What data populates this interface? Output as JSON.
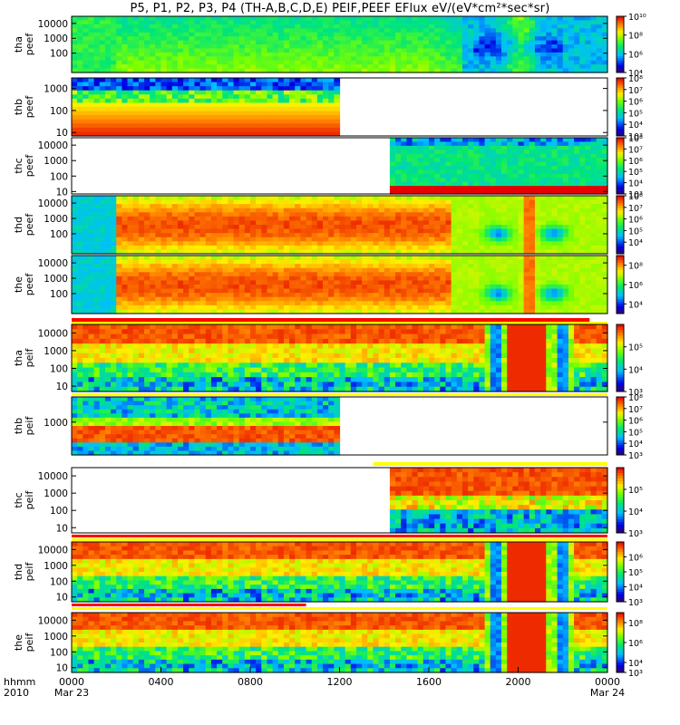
{
  "title": "P5, P1, P2, P3, P4 (TH-A,B,C,D,E) PEIF,PEEF EFlux eV/(eV*cm²*sec*sr)",
  "chart_data": [
    {
      "type": "heatmap",
      "panel": "tha_peef",
      "ylabel": [
        "tha",
        "peef"
      ],
      "ylim": [
        5,
        30000
      ],
      "yscale": "log",
      "yticks": [
        {
          "v": 100,
          "t": "100"
        },
        {
          "v": 1000,
          "t": "1000"
        },
        {
          "v": 10000,
          "t": "10000"
        }
      ],
      "coverage": [
        0,
        24
      ],
      "cbar": {
        "min": 10000.0,
        "max": 10000000000.0,
        "ticks": [
          {
            "v": 10000.0,
            "t": "10⁴"
          },
          {
            "v": 1000000.0,
            "t": "10⁶"
          },
          {
            "v": 100000000.0,
            "t": "10⁸"
          },
          {
            "v": 10000000000.0,
            "t": "10¹⁰"
          }
        ]
      },
      "theme": "electron-tha",
      "flag_bar": "none"
    },
    {
      "type": "heatmap",
      "panel": "thb_peef",
      "ylabel": [
        "thb",
        "peef"
      ],
      "ylim": [
        7,
        3000
      ],
      "yscale": "log",
      "yticks": [
        {
          "v": 10,
          "t": "10"
        },
        {
          "v": 100,
          "t": "100"
        },
        {
          "v": 1000,
          "t": "1000"
        }
      ],
      "coverage": [
        0,
        12
      ],
      "cbar": {
        "min": 1000.0,
        "max": 100000000.0,
        "ticks": [
          {
            "v": 1000.0,
            "t": "10³"
          },
          {
            "v": 10000.0,
            "t": "10⁴"
          },
          {
            "v": 100000.0,
            "t": "10⁵"
          },
          {
            "v": 1000000.0,
            "t": "10⁶"
          },
          {
            "v": 10000000.0,
            "t": "10⁷"
          },
          {
            "v": 100000000.0,
            "t": "10⁸"
          }
        ]
      },
      "theme": "electron-thb",
      "flag_bar": "none"
    },
    {
      "type": "heatmap",
      "panel": "thc_peef",
      "ylabel": [
        "thc",
        "peef"
      ],
      "ylim": [
        7,
        30000
      ],
      "yscale": "log",
      "yticks": [
        {
          "v": 10,
          "t": "10"
        },
        {
          "v": 100,
          "t": "100"
        },
        {
          "v": 1000,
          "t": "1000"
        },
        {
          "v": 10000,
          "t": "10000"
        }
      ],
      "coverage": [
        14.3,
        24
      ],
      "cbar": {
        "min": 1000.0,
        "max": 100000000.0,
        "ticks": [
          {
            "v": 1000.0,
            "t": "10³"
          },
          {
            "v": 10000.0,
            "t": "10⁴"
          },
          {
            "v": 100000.0,
            "t": "10⁵"
          },
          {
            "v": 1000000.0,
            "t": "10⁶"
          },
          {
            "v": 10000000.0,
            "t": "10⁷"
          },
          {
            "v": 100000000.0,
            "t": "10⁸"
          }
        ]
      },
      "theme": "electron-thc",
      "flag_bar": "none"
    },
    {
      "type": "heatmap",
      "panel": "thd_peef",
      "ylabel": [
        "thd",
        "peef"
      ],
      "ylim": [
        5,
        30000
      ],
      "yscale": "log",
      "yticks": [
        {
          "v": 100,
          "t": "100"
        },
        {
          "v": 1000,
          "t": "1000"
        },
        {
          "v": 10000,
          "t": "10000"
        }
      ],
      "coverage": [
        0,
        24
      ],
      "cbar": {
        "min": 1000.0,
        "max": 100000000.0,
        "ticks": [
          {
            "v": 10000.0,
            "t": "10⁴"
          },
          {
            "v": 100000.0,
            "t": "10⁵"
          },
          {
            "v": 1000000.0,
            "t": "10⁶"
          },
          {
            "v": 10000000.0,
            "t": "10⁷"
          },
          {
            "v": 100000000.0,
            "t": "10⁸"
          }
        ]
      },
      "theme": "electron-thd",
      "flag_bar": "none"
    },
    {
      "type": "heatmap",
      "panel": "the_peef",
      "ylabel": [
        "the",
        "peef"
      ],
      "ylim": [
        5,
        30000
      ],
      "yscale": "log",
      "yticks": [
        {
          "v": 100,
          "t": "100"
        },
        {
          "v": 1000,
          "t": "1000"
        },
        {
          "v": 10000,
          "t": "10000"
        }
      ],
      "coverage": [
        0,
        24
      ],
      "cbar": {
        "min": 1000.0,
        "max": 1000000000.0,
        "ticks": [
          {
            "v": 10000.0,
            "t": "10⁴"
          },
          {
            "v": 1000000.0,
            "t": "10⁶"
          },
          {
            "v": 100000000.0,
            "t": "10⁸"
          }
        ]
      },
      "theme": "electron-the",
      "flag_bar": "red-yellow"
    },
    {
      "type": "heatmap",
      "panel": "tha_peif",
      "ylabel": [
        "tha",
        "peif"
      ],
      "ylim": [
        5,
        30000
      ],
      "yscale": "log",
      "yticks": [
        {
          "v": 10,
          "t": "10"
        },
        {
          "v": 100,
          "t": "100"
        },
        {
          "v": 1000,
          "t": "1000"
        },
        {
          "v": 10000,
          "t": "10000"
        }
      ],
      "coverage": [
        0,
        24
      ],
      "cbar": {
        "min": 1000.0,
        "max": 1000000.0,
        "ticks": [
          {
            "v": 1000.0,
            "t": "10³"
          },
          {
            "v": 10000.0,
            "t": "10⁴"
          },
          {
            "v": 100000.0,
            "t": "10⁵"
          }
        ]
      },
      "theme": "ion-full",
      "flag_bar": "yellow"
    },
    {
      "type": "heatmap",
      "panel": "thb_peif",
      "ylabel": [
        "thb",
        "peif"
      ],
      "ylim": [
        50,
        10000
      ],
      "yscale": "log",
      "yticks": [
        {
          "v": 1000,
          "t": "1000"
        }
      ],
      "coverage": [
        0,
        12
      ],
      "cbar": {
        "min": 1000.0,
        "max": 100000000.0,
        "ticks": [
          {
            "v": 1000.0,
            "t": "10³"
          },
          {
            "v": 10000.0,
            "t": "10⁴"
          },
          {
            "v": 100000.0,
            "t": "10⁵"
          },
          {
            "v": 1000000.0,
            "t": "10⁶"
          },
          {
            "v": 10000000.0,
            "t": "10⁷"
          },
          {
            "v": 100000000.0,
            "t": "10⁸"
          }
        ]
      },
      "theme": "ion-thb",
      "flag_bar": "yellow-partial"
    },
    {
      "type": "heatmap",
      "panel": "thc_peif",
      "ylabel": [
        "thc",
        "peif"
      ],
      "ylim": [
        5,
        30000
      ],
      "yscale": "log",
      "yticks": [
        {
          "v": 10,
          "t": "10"
        },
        {
          "v": 100,
          "t": "100"
        },
        {
          "v": 1000,
          "t": "1000"
        },
        {
          "v": 10000,
          "t": "10000"
        }
      ],
      "coverage": [
        14.3,
        24
      ],
      "cbar": {
        "min": 1000.0,
        "max": 1000000.0,
        "ticks": [
          {
            "v": 1000.0,
            "t": "10³"
          },
          {
            "v": 10000.0,
            "t": "10⁴"
          },
          {
            "v": 100000.0,
            "t": "10⁵"
          }
        ]
      },
      "theme": "ion-thc",
      "flag_bar": "red-yellow"
    },
    {
      "type": "heatmap",
      "panel": "thd_peif",
      "ylabel": [
        "thd",
        "peif"
      ],
      "ylim": [
        5,
        30000
      ],
      "yscale": "log",
      "yticks": [
        {
          "v": 10,
          "t": "10"
        },
        {
          "v": 100,
          "t": "100"
        },
        {
          "v": 1000,
          "t": "1000"
        },
        {
          "v": 10000,
          "t": "10000"
        }
      ],
      "coverage": [
        0,
        24
      ],
      "cbar": {
        "min": 1000.0,
        "max": 10000000.0,
        "ticks": [
          {
            "v": 1000.0,
            "t": "10³"
          },
          {
            "v": 10000.0,
            "t": "10⁴"
          },
          {
            "v": 100000.0,
            "t": "10⁵"
          },
          {
            "v": 1000000.0,
            "t": "10⁶"
          }
        ]
      },
      "theme": "ion-full",
      "flag_bar": "red-yellow"
    },
    {
      "type": "heatmap",
      "panel": "the_peif",
      "ylabel": [
        "the",
        "peif"
      ],
      "ylim": [
        5,
        30000
      ],
      "yscale": "log",
      "yticks": [
        {
          "v": 10,
          "t": "10"
        },
        {
          "v": 100,
          "t": "100"
        },
        {
          "v": 1000,
          "t": "1000"
        },
        {
          "v": 10000,
          "t": "10000"
        }
      ],
      "coverage": [
        0,
        24
      ],
      "cbar": {
        "min": 1000.0,
        "max": 1000000000.0,
        "ticks": [
          {
            "v": 1000.0,
            "t": "10³"
          },
          {
            "v": 10000.0,
            "t": "10⁴"
          },
          {
            "v": 1000000.0,
            "t": "10⁶"
          },
          {
            "v": 100000000.0,
            "t": "10⁸"
          }
        ]
      },
      "theme": "ion-full",
      "flag_bar": "none"
    }
  ],
  "xaxis": {
    "label_lines": [
      "hhmm",
      "2010"
    ],
    "range_hours": [
      0,
      24
    ],
    "ticks": [
      {
        "h": 0,
        "t": "0000",
        "sub": "Mar 23"
      },
      {
        "h": 4,
        "t": "0400",
        "sub": ""
      },
      {
        "h": 8,
        "t": "0800",
        "sub": ""
      },
      {
        "h": 12,
        "t": "1200",
        "sub": ""
      },
      {
        "h": 16,
        "t": "1600",
        "sub": ""
      },
      {
        "h": 20,
        "t": "2000",
        "sub": ""
      },
      {
        "h": 24,
        "t": "0000",
        "sub": "Mar 24"
      }
    ]
  }
}
